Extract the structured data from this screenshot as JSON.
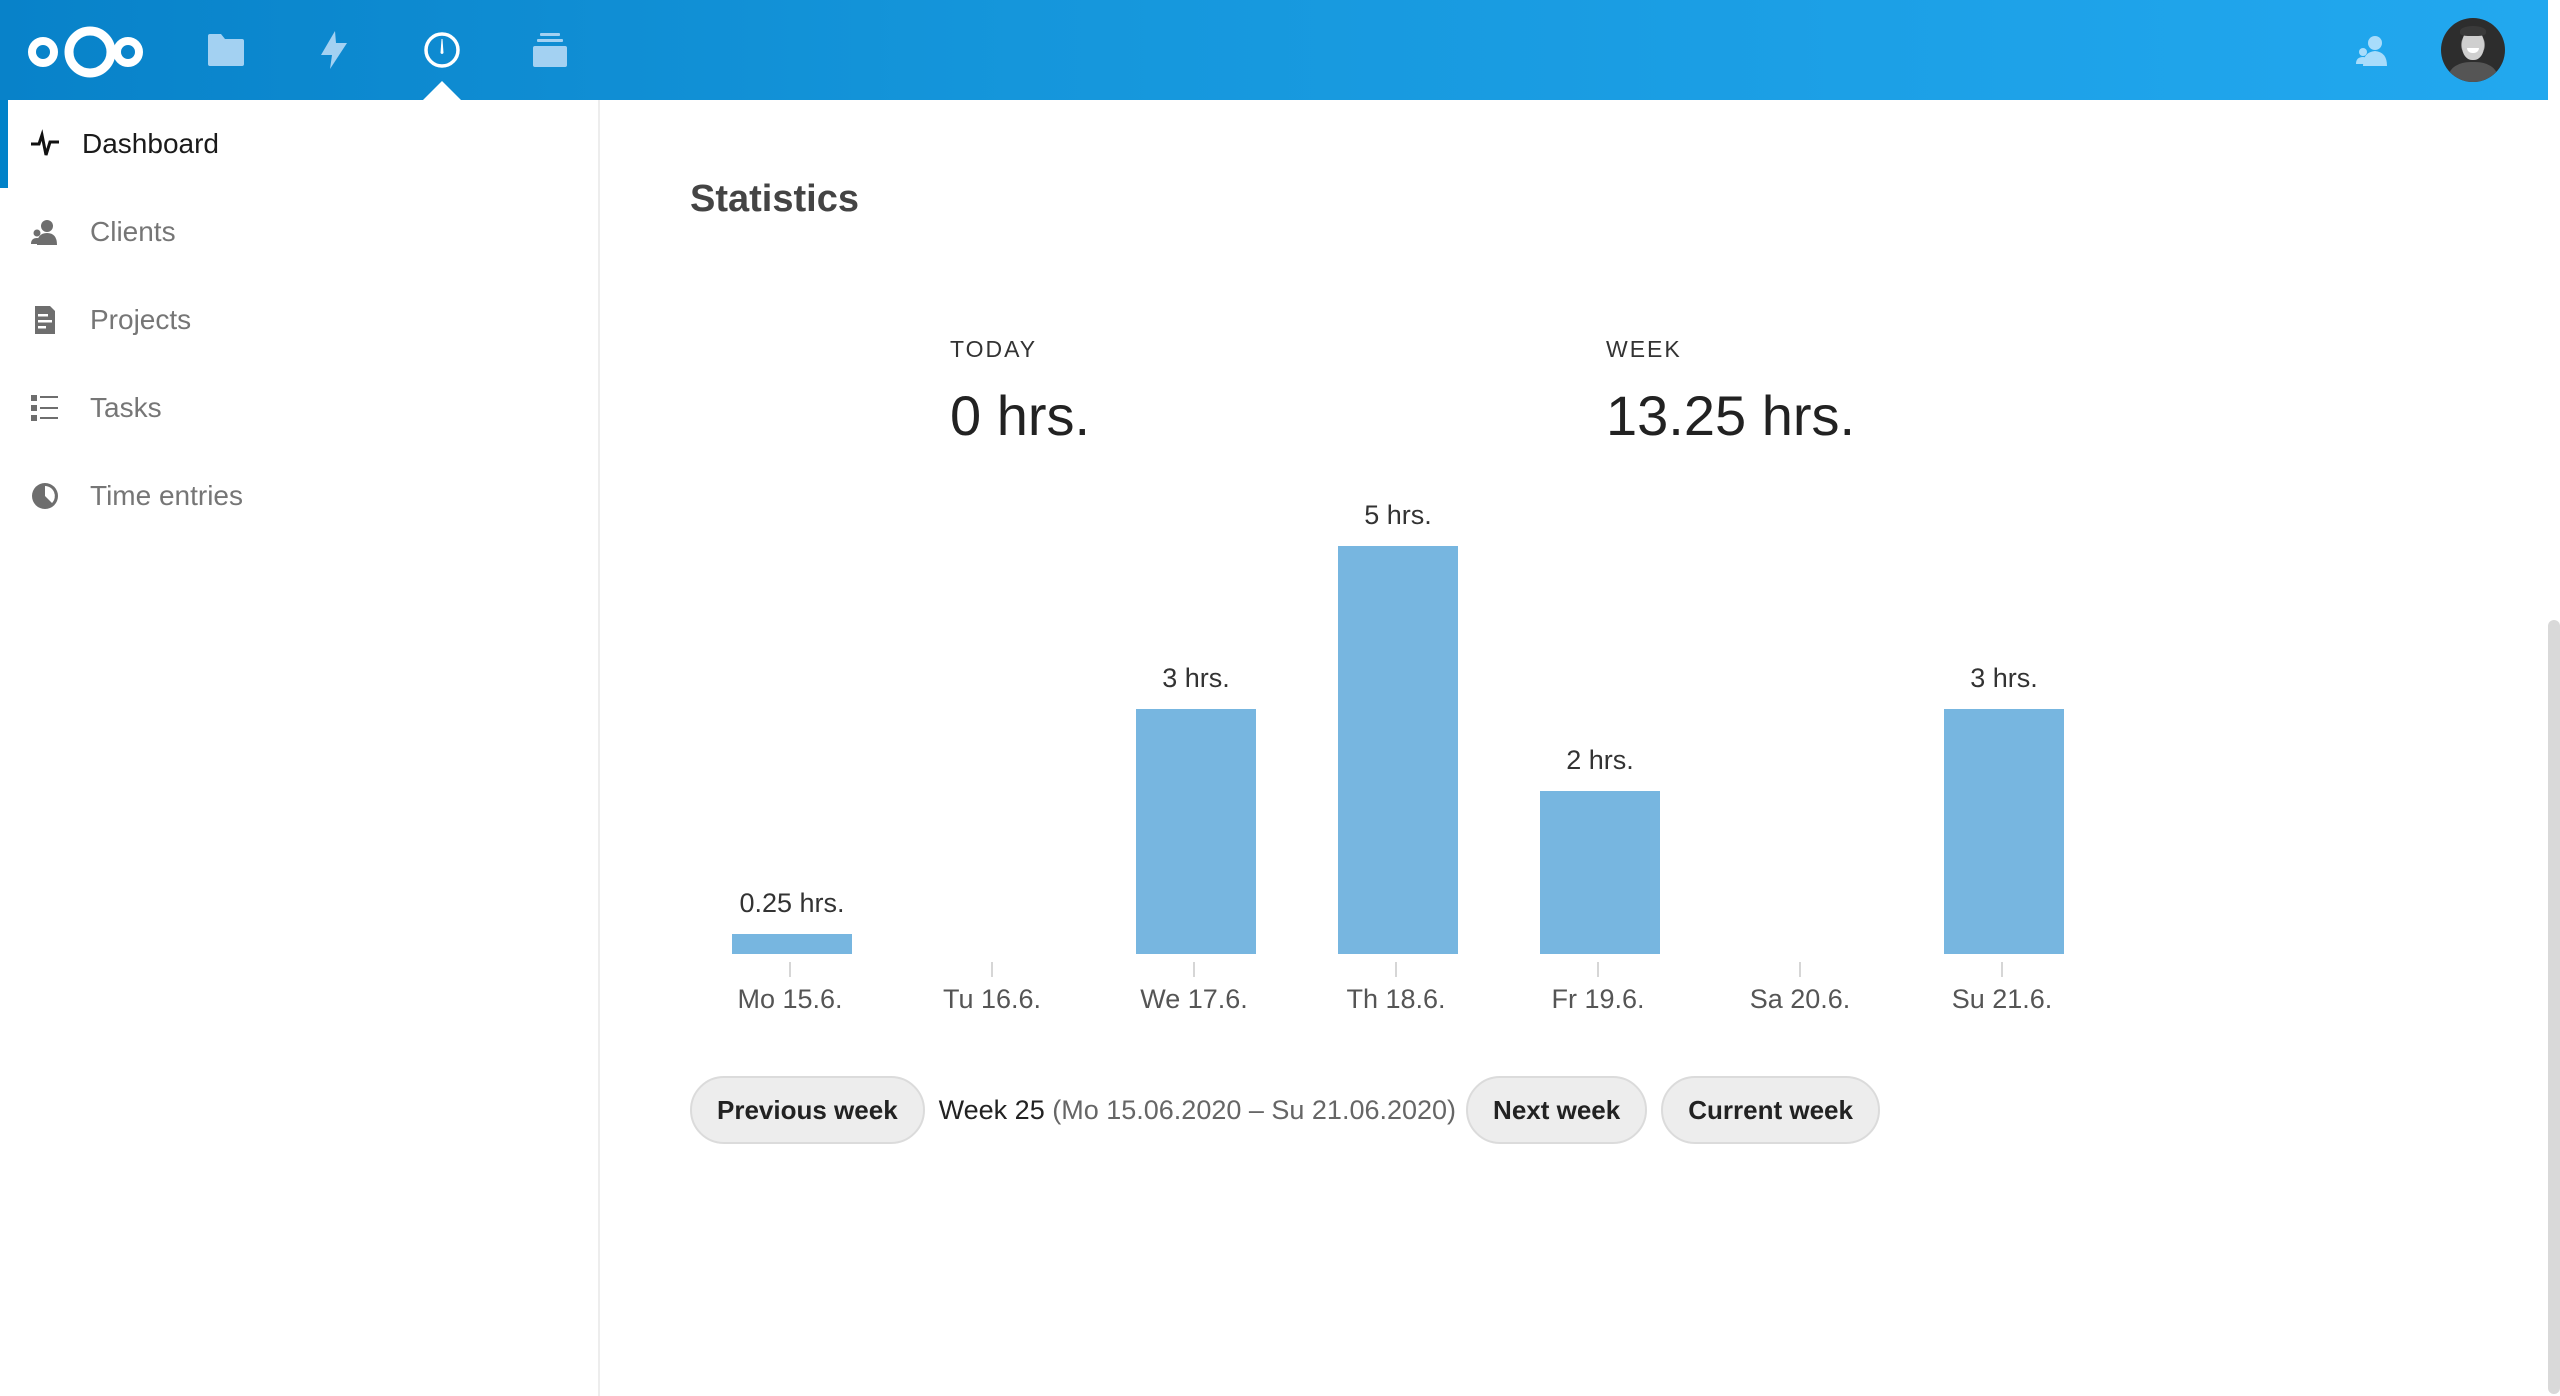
{
  "header": {
    "logo_icon": "nextcloud-logo-icon",
    "apps": [
      {
        "name": "files",
        "icon": "folder-icon",
        "active": false
      },
      {
        "name": "activity",
        "icon": "lightning-bolt-icon",
        "active": false
      },
      {
        "name": "timemanager",
        "icon": "clock-gauge-icon",
        "active": true
      },
      {
        "name": "deck",
        "icon": "deck-stack-icon",
        "active": false
      }
    ],
    "contacts_icon": "contacts-icon",
    "avatar_icon": "user-avatar"
  },
  "sidebar": {
    "items": [
      {
        "label": "Dashboard",
        "icon": "pulse-icon",
        "active": true
      },
      {
        "label": "Clients",
        "icon": "clients-icon",
        "active": false
      },
      {
        "label": "Projects",
        "icon": "document-icon",
        "active": false
      },
      {
        "label": "Tasks",
        "icon": "checklist-icon",
        "active": false
      },
      {
        "label": "Time entries",
        "icon": "pie-clock-icon",
        "active": false
      }
    ]
  },
  "main": {
    "title": "Statistics",
    "today": {
      "label": "TODAY",
      "value": "0 hrs."
    },
    "week": {
      "label": "WEEK",
      "value": "13.25 hrs."
    },
    "nav": {
      "previous_label": "Previous week",
      "week_number": "Week 25",
      "week_range": "(Mo 15.06.2020 – Su 21.06.2020)",
      "next_label": "Next week",
      "current_label": "Current week"
    }
  },
  "colors": {
    "accent": "#0082c9",
    "bar": "#77b6e0",
    "header_start": "#0882c9",
    "header_end": "#22a8ef"
  },
  "chart_data": {
    "type": "bar",
    "title": "",
    "categories": [
      "Mo 15.6.",
      "Tu 16.6.",
      "We 17.6.",
      "Th 18.6.",
      "Fr 19.6.",
      "Sa 20.6.",
      "Su 21.6."
    ],
    "values": [
      0.25,
      0,
      3,
      5,
      2,
      0,
      3
    ],
    "value_labels": [
      "0.25 hrs.",
      "",
      "3 hrs.",
      "5 hrs.",
      "2 hrs.",
      "",
      "3 hrs."
    ],
    "xlabel": "",
    "ylabel": "",
    "ylim": [
      0,
      5
    ],
    "grid": false,
    "legend": null
  }
}
